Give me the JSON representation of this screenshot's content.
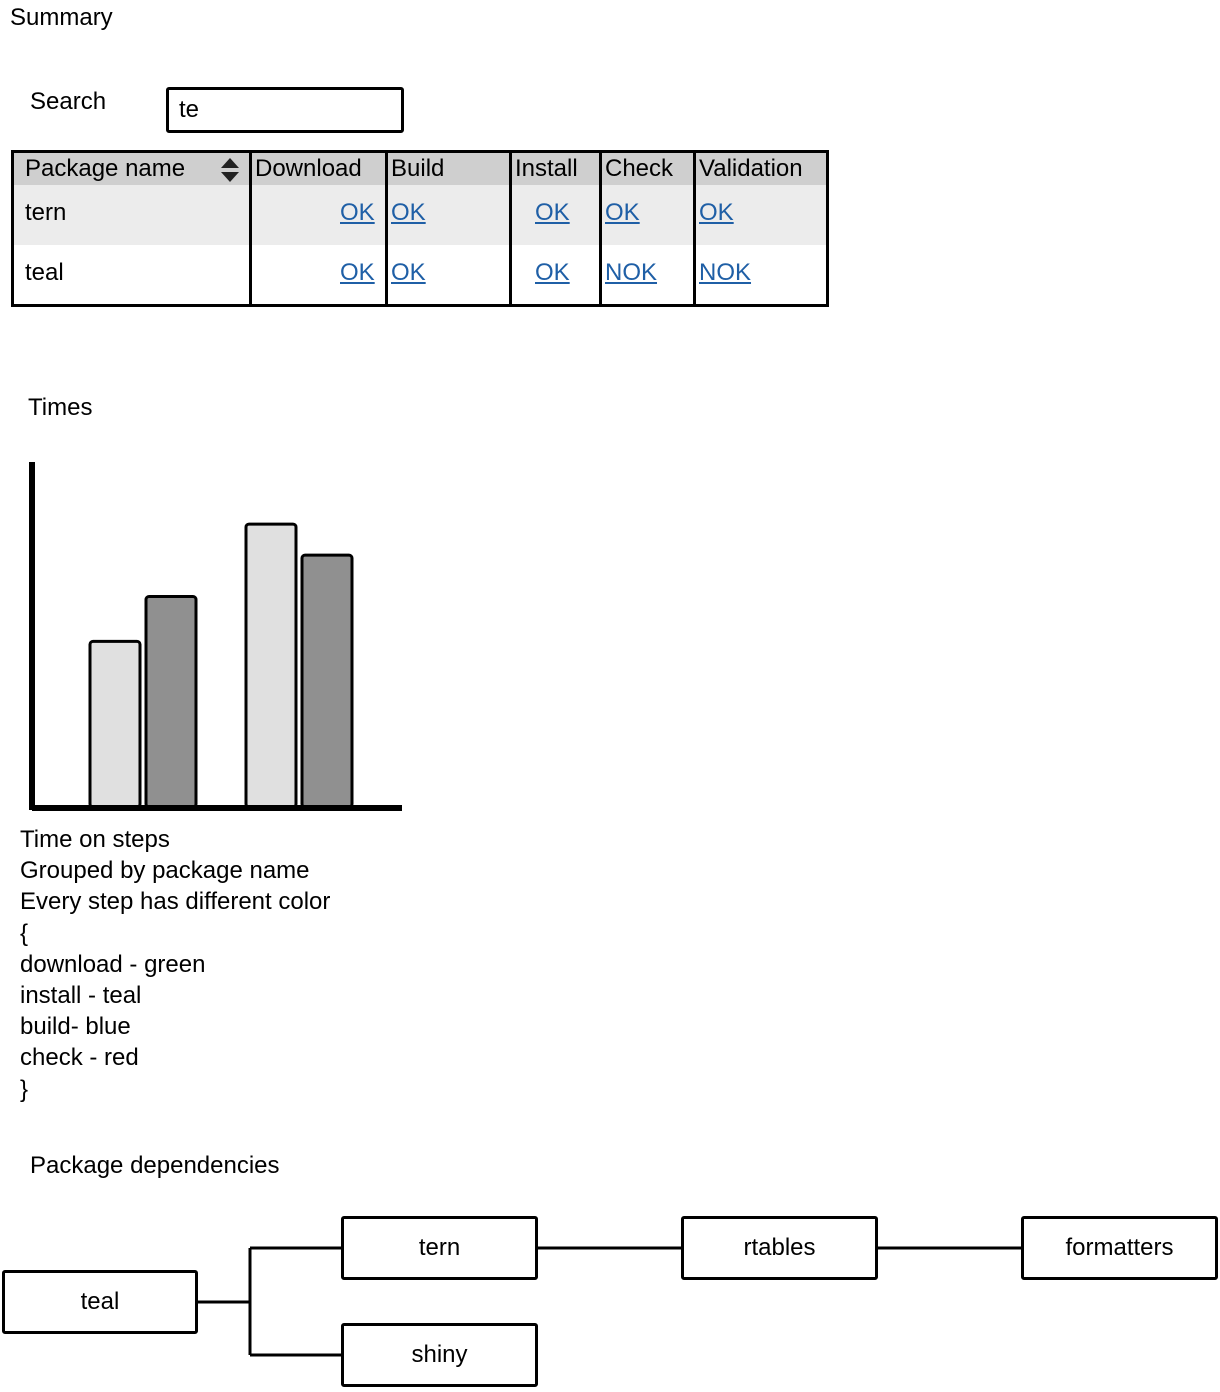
{
  "summary": {
    "title": "Summary",
    "search_label": "Search",
    "search_value": "te"
  },
  "table": {
    "headers": [
      "Package name",
      "Download",
      "Build",
      "Install",
      "Check",
      "Validation"
    ],
    "rows": [
      {
        "name": "tern",
        "download": "OK",
        "build": "OK",
        "install": "OK",
        "check": "OK",
        "validation": "OK"
      },
      {
        "name": "teal",
        "download": "OK",
        "build": "OK",
        "install": "OK",
        "check": "NOK",
        "validation": "NOK"
      }
    ],
    "sort_icon": "sort-up-down-icon"
  },
  "times": {
    "title": "Times",
    "notes": [
      "Time on steps",
      "Grouped by package name",
      "Every step has different color",
      "{",
      "download - green",
      "install - teal",
      "build- blue",
      "check - red",
      "}"
    ]
  },
  "chart_data": {
    "type": "bar",
    "title": "",
    "xlabel": "",
    "ylabel": "",
    "categories": [
      "",
      ""
    ],
    "series": [
      {
        "values": [
          48,
          82
        ],
        "color": "#e0e0e0"
      },
      {
        "values": [
          61,
          73
        ],
        "color": "#909090"
      }
    ],
    "ylim": [
      0,
      100
    ],
    "grid": false,
    "legend": "none"
  },
  "dependencies": {
    "title": "Package dependencies",
    "nodes": [
      "teal",
      "tern",
      "shiny",
      "rtables",
      "formatters"
    ],
    "edges": [
      [
        "teal",
        "tern"
      ],
      [
        "teal",
        "shiny"
      ],
      [
        "tern",
        "rtables"
      ],
      [
        "rtables",
        "formatters"
      ]
    ]
  }
}
